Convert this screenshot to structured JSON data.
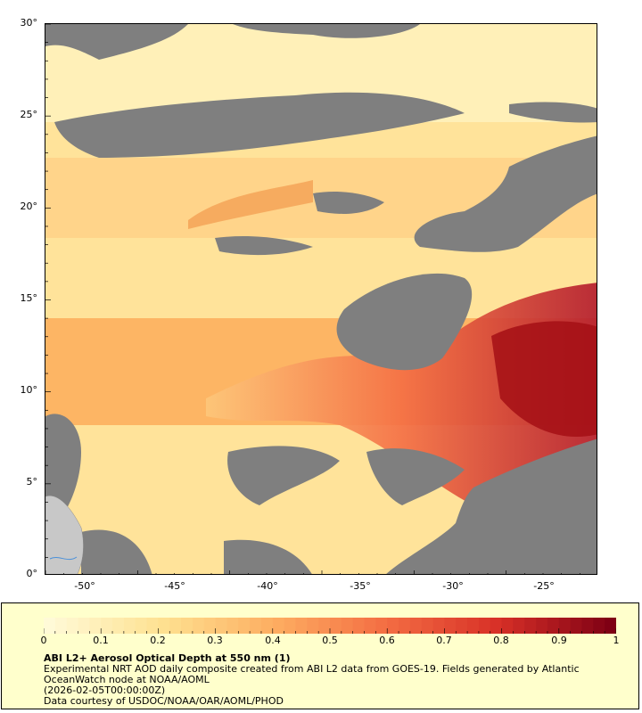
{
  "map": {
    "lat_labels": [
      "30°",
      "25°",
      "20°",
      "15°",
      "10°",
      "5°",
      "0°"
    ],
    "lon_labels": [
      "-50°",
      "-45°",
      "-40°",
      "-35°",
      "-30°",
      "-25°"
    ],
    "colors": {
      "no_data": "#7f7f7f",
      "land": "#c8c8c8",
      "low": "#ffe9a8",
      "mid": "#fdae61",
      "high": "#d7301f",
      "max": "#7f0000"
    }
  },
  "legend": {
    "title": "ABI L2+ Aerosol Optical Depth at 550 nm (1)",
    "line1": "Experimental NRT AOD daily composite created from ABI L2 data from GOES-19. Fields generated by Atlantic",
    "line2": "OceanWatch node at NOAA/AOML",
    "line3": "(2026-02-05T00:00:00Z)",
    "line4": "Data courtesy of USDOC/NOAA/OAR/AOML/PHOD",
    "scale_labels": [
      "0",
      "0.1",
      "0.2",
      "0.3",
      "0.4",
      "0.5",
      "0.6",
      "0.7",
      "0.8",
      "0.9",
      "1"
    ]
  }
}
